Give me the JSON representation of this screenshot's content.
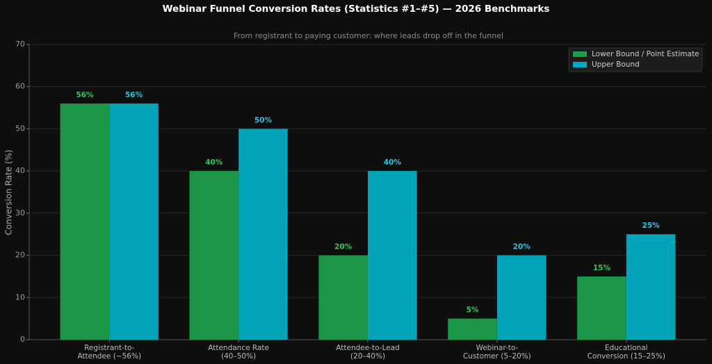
{
  "chart_data": {
    "type": "bar",
    "title": "Webinar Funnel Conversion Rates (Statistics #1–#5) — 2026 Benchmarks",
    "subtitle": "From registrant to paying customer: where leads drop off in the funnel",
    "y_label": "Conversion Rate (%)",
    "categories": [
      [
        "Registrant-to-",
        "Attendee (~56%)"
      ],
      [
        "Attendance Rate",
        "(40–50%)"
      ],
      [
        "Attendee-to-Lead",
        "(20–40%)"
      ],
      [
        "Webinar-to-",
        "Customer (5–20%)"
      ],
      [
        "Educational",
        "Conversion (15–25%)"
      ]
    ],
    "series": [
      {
        "name": "Lower Bound / Point Estimate",
        "color": "#1e9e4a",
        "label_color": "#2ec95a",
        "values": [
          56,
          40,
          20,
          5,
          15
        ],
        "value_labels": [
          "56%",
          "40%",
          "20%",
          "5%",
          "15%"
        ]
      },
      {
        "name": "Upper Bound",
        "color": "#00acc1",
        "label_color": "#22c8e6",
        "values": [
          56,
          50,
          40,
          20,
          25
        ],
        "value_labels": [
          "56%",
          "50%",
          "40%",
          "20%",
          "25%"
        ]
      }
    ],
    "ylim": [
      0,
      70
    ],
    "yticks": [
      0,
      10,
      20,
      30,
      40,
      50,
      60,
      70
    ],
    "grid": true,
    "legend": "upper right"
  }
}
